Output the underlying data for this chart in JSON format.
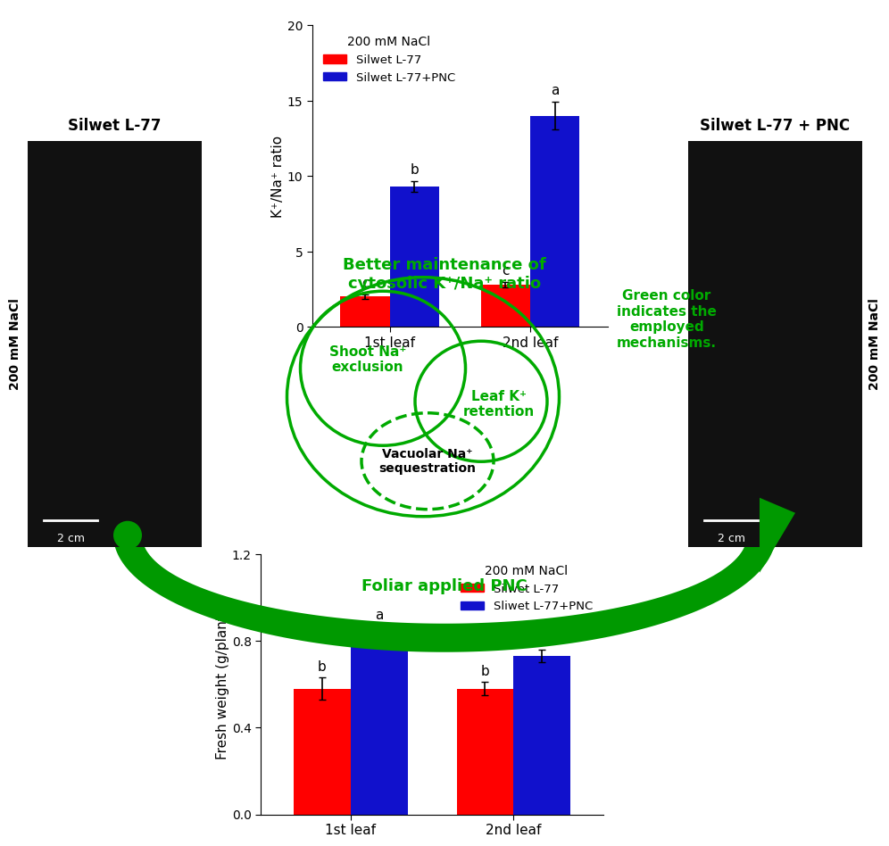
{
  "top_bar": {
    "title": "200 mM NaCl",
    "legend1": "Silwet L-77",
    "legend2": "Silwet L-77+PNC",
    "categories": [
      "1st leaf",
      "2nd leaf"
    ],
    "red_values": [
      2.0,
      2.8
    ],
    "blue_values": [
      9.3,
      14.0
    ],
    "red_errors": [
      0.15,
      0.2
    ],
    "blue_errors": [
      0.35,
      0.9
    ],
    "red_labels": [
      "c",
      "c"
    ],
    "blue_labels": [
      "b",
      "a"
    ],
    "ylabel": "K⁺/Na⁺ ratio",
    "ylim": [
      0,
      20
    ],
    "yticks": [
      0,
      5,
      10,
      15,
      20
    ]
  },
  "bottom_bar": {
    "title": "200 mM NaCl",
    "legend1": "Silwet L-77",
    "legend2": "Sliwet L-77+PNC",
    "categories": [
      "1st leaf",
      "2nd leaf"
    ],
    "red_values": [
      0.58,
      0.58
    ],
    "blue_values": [
      0.83,
      0.73
    ],
    "red_errors": [
      0.05,
      0.03
    ],
    "blue_errors": [
      0.04,
      0.03
    ],
    "red_labels": [
      "b",
      "b"
    ],
    "blue_labels": [
      "a",
      "a"
    ],
    "ylabel": "Fresh weight (g/plant)",
    "ylim": [
      0,
      1.2
    ],
    "yticks": [
      0,
      0.4,
      0.8,
      1.2
    ]
  },
  "green_color": "#00AA00",
  "arrow_green": "#009900",
  "text_green": "#00AA00",
  "red_bar": "#FF0000",
  "blue_bar": "#1111CC",
  "left_photo_label": "Silwet L-77",
  "right_photo_label": "Silwet L-77 + PNC",
  "scale_bar": "2 cm",
  "center_label_top": "Better maintenance of\ncytosolic K⁺/Na⁺ ratio",
  "center_label_bottom": "Foliar applied PNC",
  "green_note": "Green color\nindicates the\nemployed\nmechanisms.",
  "shoot_na": "Shoot Na⁺\nexclusion",
  "leaf_k": "Leaf K⁺\nretention",
  "vacuolar_na": "Vacuolar Na⁺\nsequestration",
  "side_label": "200 mM NaCl"
}
